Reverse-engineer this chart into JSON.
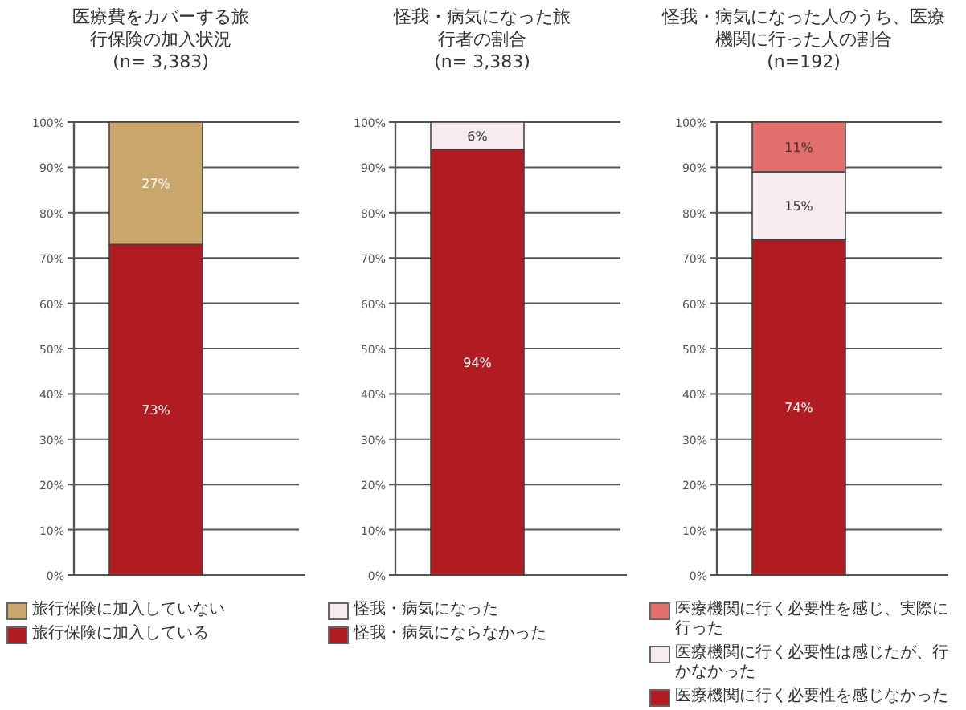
{
  "chart_data": [
    {
      "type": "bar",
      "stacked": true,
      "title": "医療費をカバーする旅行保険の加入状況",
      "subtitle": "(n= 3,383)",
      "categories": [
        null
      ],
      "series": [
        {
          "name": "旅行保険に加入している",
          "color": "#b01c22",
          "values": [
            73
          ],
          "value_labels": [
            "73%"
          ]
        },
        {
          "name": "旅行保険に加入していない",
          "color": "#c9a66b",
          "values": [
            27
          ],
          "value_labels": [
            "27%"
          ]
        }
      ],
      "ylim": [
        0,
        100
      ],
      "yticks": [
        {
          "value": 0,
          "label": "0%"
        },
        {
          "value": 10,
          "label": "10%"
        },
        {
          "value": 20,
          "label": "20%"
        },
        {
          "value": 30,
          "label": "30%"
        },
        {
          "value": 40,
          "label": "40%"
        },
        {
          "value": 50,
          "label": "50%"
        },
        {
          "value": 60,
          "label": "60%"
        },
        {
          "value": 70,
          "label": "70%"
        },
        {
          "value": 80,
          "label": "80%"
        },
        {
          "value": 90,
          "label": "90%"
        },
        {
          "value": 100,
          "label": "100%"
        }
      ],
      "grid": "y",
      "legend": "bottom",
      "tick_labels": "y"
    },
    {
      "type": "bar",
      "stacked": true,
      "title": "怪我・病気になった旅行者の割合",
      "subtitle": "(n= 3,383)",
      "categories": [
        null
      ],
      "series": [
        {
          "name": "怪我・病気にならなかった",
          "color": "#b01c22",
          "values": [
            94
          ],
          "value_labels": [
            "94%"
          ]
        },
        {
          "name": "怪我・病気になった",
          "color": "#f6ecf0",
          "values": [
            6
          ],
          "value_labels": [
            "6%"
          ]
        }
      ],
      "ylim": [
        0,
        100
      ],
      "yticks": [
        {
          "value": 0,
          "label": "0%"
        },
        {
          "value": 10,
          "label": "10%"
        },
        {
          "value": 20,
          "label": "20%"
        },
        {
          "value": 30,
          "label": "30%"
        },
        {
          "value": 40,
          "label": "40%"
        },
        {
          "value": 50,
          "label": "50%"
        },
        {
          "value": 60,
          "label": "60%"
        },
        {
          "value": 70,
          "label": "70%"
        },
        {
          "value": 80,
          "label": "80%"
        },
        {
          "value": 90,
          "label": "90%"
        },
        {
          "value": 100,
          "label": "100%"
        }
      ],
      "grid": "y",
      "legend": "bottom",
      "tick_labels": "y"
    },
    {
      "type": "bar",
      "stacked": true,
      "title": "怪我・病気になった人のうち、医療機関に行った人の割合",
      "subtitle": "(n=192)",
      "categories": [
        null
      ],
      "series": [
        {
          "name": "医療機関に行く必要性を感じなかった",
          "color": "#b01c22",
          "values": [
            74
          ],
          "value_labels": [
            "74%"
          ]
        },
        {
          "name": "医療機関に行く必要性は感じたが、行かなかった",
          "color": "#f6ecf0",
          "values": [
            15
          ],
          "value_labels": [
            "15%"
          ]
        },
        {
          "name": "医療機関に行く必要性を感じ、実際に行った",
          "color": "#e36f6c",
          "values": [
            11
          ],
          "value_labels": [
            "11%"
          ]
        }
      ],
      "ylim": [
        0,
        100
      ],
      "yticks": [
        {
          "value": 0,
          "label": "0%"
        },
        {
          "value": 10,
          "label": "10%"
        },
        {
          "value": 20,
          "label": "20%"
        },
        {
          "value": 30,
          "label": "30%"
        },
        {
          "value": 40,
          "label": "40%"
        },
        {
          "value": 50,
          "label": "50%"
        },
        {
          "value": 60,
          "label": "60%"
        },
        {
          "value": 70,
          "label": "70%"
        },
        {
          "value": 80,
          "label": "80%"
        },
        {
          "value": 90,
          "label": "90%"
        },
        {
          "value": 100,
          "label": "100%"
        }
      ],
      "grid": "y",
      "legend": "bottom",
      "tick_labels": "y"
    }
  ]
}
